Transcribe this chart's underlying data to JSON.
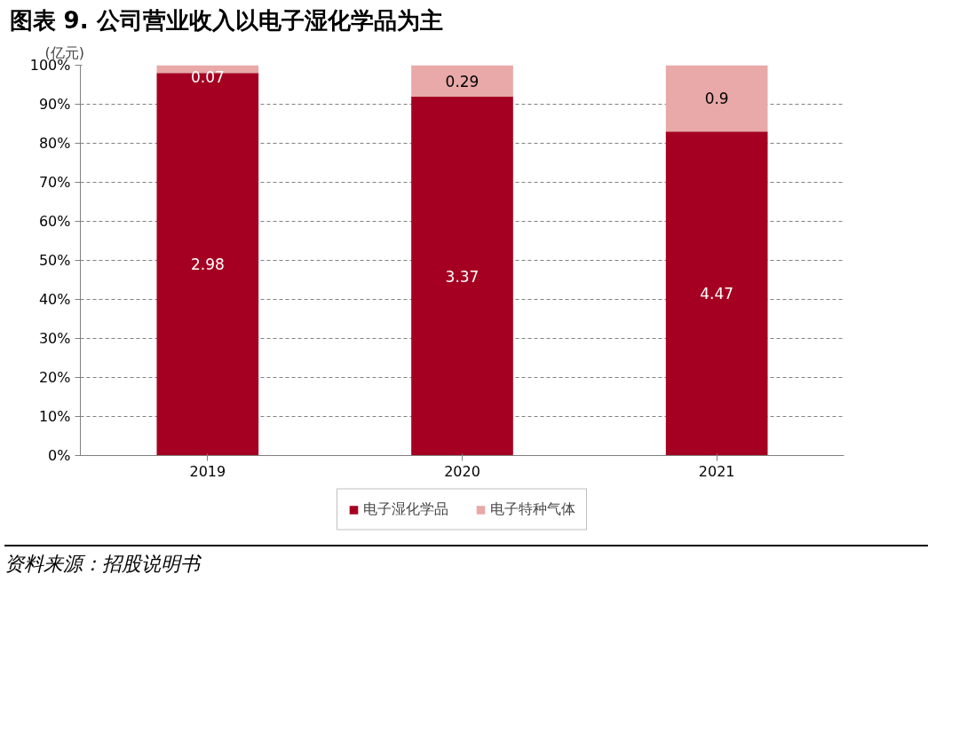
{
  "chart_data": {
    "type": "bar",
    "stacked": true,
    "title": "图表 9. 公司营业收入以电子湿化学品为主",
    "ylabel": "(亿元)",
    "categories": [
      "2019",
      "2020",
      "2021"
    ],
    "series": [
      {
        "name": "电子湿化学品",
        "color": "#a50021",
        "values": [
          98,
          92,
          83
        ]
      },
      {
        "name": "电子特种气体",
        "color": "#e8a9a8",
        "values": [
          2,
          8,
          17
        ]
      }
    ],
    "ylim": [
      0,
      100
    ],
    "yticks": [
      {
        "value": 0,
        "label": "0%"
      },
      {
        "value": 10,
        "label": "10%"
      },
      {
        "value": 20,
        "label": "20%"
      },
      {
        "value": 30,
        "label": "30%"
      },
      {
        "value": 40,
        "label": "40%"
      },
      {
        "value": 50,
        "label": "50%"
      },
      {
        "value": 60,
        "label": "60%"
      },
      {
        "value": 70,
        "label": "70%"
      },
      {
        "value": 80,
        "label": "80%"
      },
      {
        "value": 90,
        "label": "90%"
      },
      {
        "value": 100,
        "label": "100%"
      }
    ],
    "grid": "y",
    "legend": "bottom",
    "annotations": [
      "2.98",
      "3.37",
      "4.47",
      "0.07",
      "0.29",
      "0.9",
      "资料来源：招股说明书"
    ]
  }
}
